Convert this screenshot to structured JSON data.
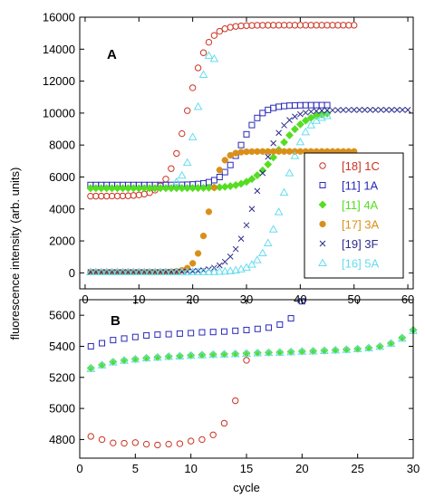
{
  "chart_data": [
    {
      "panel_label": "A",
      "type": "scatter",
      "xlabel": "",
      "ylabel": "fluorescence intensity (arb. units)",
      "xlim": [
        -1,
        61
      ],
      "ylim": [
        -1000,
        16000
      ],
      "x_ticks": [
        0,
        10,
        20,
        30,
        40,
        50,
        60
      ],
      "y_ticks": [
        0,
        2000,
        4000,
        6000,
        8000,
        10000,
        12000,
        14000,
        16000
      ],
      "grid": false,
      "legend_position": "right",
      "series": [
        {
          "name": "[18] 1C",
          "color": "#cc3322",
          "marker": "circle-open",
          "curve": {
            "type": "sigmoid",
            "base": 4800,
            "top": 15500,
            "mid": 19,
            "k": 0.55,
            "start": 1,
            "end": 50
          }
        },
        {
          "name": "[11] 1A",
          "color": "#2a2ab8",
          "marker": "square-open",
          "curve": {
            "type": "sigmoid",
            "base": 5500,
            "top": 10500,
            "mid": 29,
            "k": 0.55,
            "start": 1,
            "end": 45
          }
        },
        {
          "name": "[11] 4A",
          "color": "#55dd22",
          "marker": "diamond-filled",
          "curve": {
            "type": "sigmoid",
            "base": 5300,
            "top": 10100,
            "mid": 36,
            "k": 0.4,
            "start": 1,
            "end": 45
          }
        },
        {
          "name": "[17] 3A",
          "color": "#d9901a",
          "marker": "circle-filled",
          "curve": {
            "type": "sigmoid",
            "base": 50,
            "top": 7600,
            "mid": 23,
            "k": 0.85,
            "start": 1,
            "end": 50
          }
        },
        {
          "name": "[19] 3F",
          "color": "#2b2b8c",
          "marker": "cross",
          "curve": {
            "type": "sigmoid",
            "base": 50,
            "top": 10200,
            "mid": 32,
            "k": 0.45,
            "start": 1,
            "end": 60
          }
        },
        {
          "name": "[16] 5A",
          "color": "#66ddee",
          "marker": "triangle-open",
          "curve": {
            "type": "sigmoid",
            "base": 50,
            "top": 10000,
            "mid": 37,
            "k": 0.5,
            "start": 1,
            "end": 45
          }
        }
      ],
      "extra_series": [
        {
          "color": "#66ddee",
          "marker": "triangle-open",
          "points": [
            [
              17,
              5700
            ],
            [
              18,
              6100
            ],
            [
              19,
              6900
            ],
            [
              20,
              8500
            ],
            [
              21,
              10400
            ],
            [
              22,
              12400
            ],
            [
              23,
              13600
            ],
            [
              24,
              13400
            ]
          ]
        }
      ]
    },
    {
      "panel_label": "B",
      "type": "scatter",
      "xlabel": "cycle",
      "ylabel": "",
      "xlim": [
        0,
        30
      ],
      "ylim": [
        4680,
        5700
      ],
      "x_ticks": [
        0,
        5,
        10,
        15,
        20,
        25,
        30
      ],
      "y_ticks": [
        4800,
        5000,
        5200,
        5400,
        5600
      ],
      "grid": false,
      "series": [
        {
          "name": "[18] 1C",
          "color": "#cc3322",
          "marker": "circle-open",
          "points": [
            [
              1,
              4820
            ],
            [
              2,
              4800
            ],
            [
              3,
              4778
            ],
            [
              4,
              4776
            ],
            [
              5,
              4780
            ],
            [
              6,
              4770
            ],
            [
              7,
              4765
            ],
            [
              8,
              4770
            ],
            [
              9,
              4773
            ],
            [
              10,
              4790
            ],
            [
              11,
              4800
            ],
            [
              12,
              4830
            ],
            [
              13,
              4905
            ],
            [
              14,
              5050
            ],
            [
              15,
              5310
            ]
          ]
        },
        {
          "name": "[11] 1A",
          "color": "#2a2ab8",
          "marker": "square-open",
          "points": [
            [
              1,
              5400
            ],
            [
              2,
              5420
            ],
            [
              3,
              5440
            ],
            [
              4,
              5450
            ],
            [
              5,
              5460
            ],
            [
              6,
              5470
            ],
            [
              7,
              5475
            ],
            [
              8,
              5478
            ],
            [
              9,
              5482
            ],
            [
              10,
              5485
            ],
            [
              11,
              5490
            ],
            [
              12,
              5492
            ],
            [
              13,
              5495
            ],
            [
              14,
              5500
            ],
            [
              15,
              5505
            ],
            [
              16,
              5512
            ],
            [
              17,
              5520
            ],
            [
              18,
              5540
            ],
            [
              19,
              5580
            ],
            [
              20,
              5690
            ]
          ]
        },
        {
          "name": "[11] 4A",
          "color": "#55dd22",
          "marker": "diamond-filled",
          "points": [
            [
              1,
              5260
            ],
            [
              2,
              5280
            ],
            [
              3,
              5300
            ],
            [
              4,
              5310
            ],
            [
              5,
              5318
            ],
            [
              6,
              5325
            ],
            [
              7,
              5330
            ],
            [
              8,
              5335
            ],
            [
              9,
              5338
            ],
            [
              10,
              5342
            ],
            [
              11,
              5345
            ],
            [
              12,
              5348
            ],
            [
              13,
              5350
            ],
            [
              14,
              5352
            ],
            [
              15,
              5355
            ],
            [
              16,
              5358
            ],
            [
              17,
              5360
            ],
            [
              18,
              5362
            ],
            [
              19,
              5365
            ],
            [
              20,
              5368
            ],
            [
              21,
              5370
            ],
            [
              22,
              5373
            ],
            [
              23,
              5376
            ],
            [
              24,
              5380
            ],
            [
              25,
              5384
            ],
            [
              26,
              5390
            ],
            [
              27,
              5400
            ],
            [
              28,
              5420
            ],
            [
              29,
              5455
            ],
            [
              30,
              5505
            ]
          ]
        },
        {
          "name": "[16] 5A",
          "color": "#66ddee",
          "marker": "triangle-open",
          "points": [
            [
              1,
              5255
            ],
            [
              2,
              5278
            ],
            [
              3,
              5297
            ],
            [
              4,
              5308
            ],
            [
              5,
              5316
            ],
            [
              6,
              5323
            ],
            [
              7,
              5328
            ],
            [
              8,
              5333
            ],
            [
              9,
              5336
            ],
            [
              10,
              5340
            ],
            [
              11,
              5343
            ],
            [
              12,
              5346
            ],
            [
              13,
              5348
            ],
            [
              14,
              5350
            ],
            [
              15,
              5353
            ],
            [
              16,
              5356
            ],
            [
              17,
              5358
            ],
            [
              18,
              5360
            ],
            [
              19,
              5363
            ],
            [
              20,
              5366
            ],
            [
              21,
              5368
            ],
            [
              22,
              5371
            ],
            [
              23,
              5374
            ],
            [
              24,
              5378
            ],
            [
              25,
              5382
            ],
            [
              26,
              5388
            ],
            [
              27,
              5398
            ],
            [
              28,
              5418
            ],
            [
              29,
              5450
            ],
            [
              30,
              5500
            ]
          ]
        }
      ]
    }
  ]
}
